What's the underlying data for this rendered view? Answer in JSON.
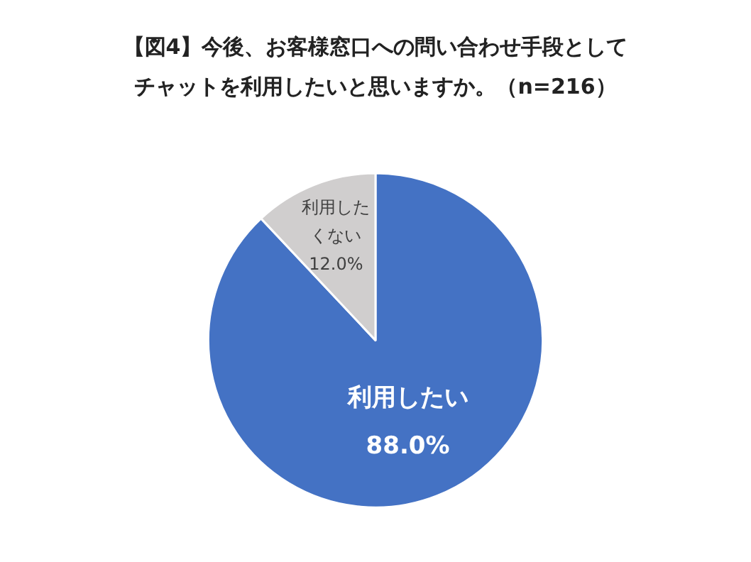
{
  "chart_data": {
    "type": "pie",
    "title": "【図4】今後、お客様窓口への問い合わせ手段としてチャットを利用したいと思いますか。（n=216）",
    "categories": [
      "利用したい",
      "利用したくない"
    ],
    "values": [
      88.0,
      12.0
    ],
    "value_labels": [
      "88.0%",
      "12.0%"
    ],
    "colors": [
      "#4472c4",
      "#d0cece"
    ],
    "legend": false
  }
}
